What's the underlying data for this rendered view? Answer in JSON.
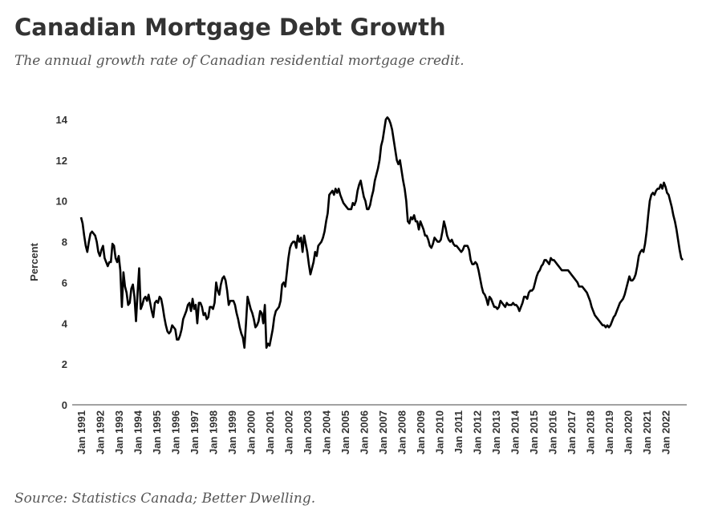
{
  "chart_data": {
    "type": "line",
    "title": "Canadian Mortgage Debt Growth",
    "subtitle": "The annual growth rate of Canadian residential mortgage credit.",
    "source": "Source: Statistics Canada; Better Dwelling.",
    "y_label": "Percent",
    "color": "#000000",
    "ylim": [
      0,
      14
    ],
    "yticks": [
      0,
      2,
      4,
      6,
      8,
      10,
      12,
      14
    ],
    "categories": [
      "Jan 1991",
      null,
      null,
      null,
      null,
      null,
      null,
      null,
      null,
      null,
      null,
      null,
      "Jan 1992",
      null,
      null,
      null,
      null,
      null,
      null,
      null,
      null,
      null,
      null,
      null,
      "Jan 1993",
      null,
      null,
      null,
      null,
      null,
      null,
      null,
      null,
      null,
      null,
      null,
      "Jan 1994",
      null,
      null,
      null,
      null,
      null,
      null,
      null,
      null,
      null,
      null,
      null,
      "Jan 1995",
      null,
      null,
      null,
      null,
      null,
      null,
      null,
      null,
      null,
      null,
      null,
      "Jan 1996",
      null,
      null,
      null,
      null,
      null,
      null,
      null,
      null,
      null,
      null,
      null,
      "Jan 1997",
      null,
      null,
      null,
      null,
      null,
      null,
      null,
      null,
      null,
      null,
      null,
      "Jan 1998",
      null,
      null,
      null,
      null,
      null,
      null,
      null,
      null,
      null,
      null,
      null,
      "Jan 1999",
      null,
      null,
      null,
      null,
      null,
      null,
      null,
      null,
      null,
      null,
      null,
      "Jan 2000",
      null,
      null,
      null,
      null,
      null,
      null,
      null,
      null,
      null,
      null,
      null,
      "Jan 2001",
      null,
      null,
      null,
      null,
      null,
      null,
      null,
      null,
      null,
      null,
      null,
      "Jan 2002",
      null,
      null,
      null,
      null,
      null,
      null,
      null,
      null,
      null,
      null,
      null,
      "Jan 2003",
      null,
      null,
      null,
      null,
      null,
      null,
      null,
      null,
      null,
      null,
      null,
      "Jan 2004",
      null,
      null,
      null,
      null,
      null,
      null,
      null,
      null,
      null,
      null,
      null,
      "Jan 2005",
      null,
      null,
      null,
      null,
      null,
      null,
      null,
      null,
      null,
      null,
      null,
      "Jan 2006",
      null,
      null,
      null,
      null,
      null,
      null,
      null,
      null,
      null,
      null,
      null,
      "Jan 2007",
      null,
      null,
      null,
      null,
      null,
      null,
      null,
      null,
      null,
      null,
      null,
      "Jan 2008",
      null,
      null,
      null,
      null,
      null,
      null,
      null,
      null,
      null,
      null,
      null,
      "Jan 2009",
      null,
      null,
      null,
      null,
      null,
      null,
      null,
      null,
      null,
      null,
      null,
      "Jan 2010",
      null,
      null,
      null,
      null,
      null,
      null,
      null,
      null,
      null,
      null,
      null,
      "Jan 2011",
      null,
      null,
      null,
      null,
      null,
      null,
      null,
      null,
      null,
      null,
      null,
      "Jan 2012",
      null,
      null,
      null,
      null,
      null,
      null,
      null,
      null,
      null,
      null,
      null,
      "Jan 2013",
      null,
      null,
      null,
      null,
      null,
      null,
      null,
      null,
      null,
      null,
      null,
      "Jan 2014",
      null,
      null,
      null,
      null,
      null,
      null,
      null,
      null,
      null,
      null,
      null,
      "Jan 2015",
      null,
      null,
      null,
      null,
      null,
      null,
      null,
      null,
      null,
      null,
      null,
      "Jan 2016",
      null,
      null,
      null,
      null,
      null,
      null,
      null,
      null,
      null,
      null,
      null,
      "Jan 2017",
      null,
      null,
      null,
      null,
      null,
      null,
      null,
      null,
      null,
      null,
      null,
      "Jan 2018",
      null,
      null,
      null,
      null,
      null,
      null,
      null,
      null,
      null,
      null,
      null,
      "Jan 2019",
      null,
      null,
      null,
      null,
      null,
      null,
      null,
      null,
      null,
      null,
      null,
      "Jan 2020",
      null,
      null,
      null,
      null,
      null,
      null,
      null,
      null,
      null,
      null,
      null,
      "Jan 2021",
      null,
      null,
      null,
      null,
      null,
      null,
      null,
      null,
      null,
      null,
      null,
      "Jan 2022",
      null,
      null,
      null,
      null,
      null,
      null,
      null,
      null,
      null,
      null,
      null
    ],
    "values": [
      9.2,
      8.9,
      8.3,
      7.8,
      7.5,
      8.0,
      8.4,
      8.5,
      8.4,
      8.3,
      8.0,
      7.5,
      7.3,
      7.6,
      7.8,
      7.2,
      7.0,
      6.8,
      7.0,
      7.0,
      7.9,
      7.8,
      7.2,
      7.0,
      7.3,
      6.6,
      4.8,
      6.5,
      5.8,
      5.5,
      4.9,
      5.0,
      5.7,
      5.9,
      5.3,
      4.1,
      5.5,
      6.7,
      4.7,
      4.9,
      5.2,
      5.3,
      5.1,
      5.4,
      5.0,
      4.6,
      4.3,
      5.0,
      5.1,
      5.0,
      5.3,
      5.2,
      4.8,
      4.3,
      3.9,
      3.6,
      3.5,
      3.6,
      3.9,
      3.8,
      3.7,
      3.2,
      3.2,
      3.4,
      3.7,
      4.2,
      4.4,
      4.6,
      4.9,
      5.0,
      4.6,
      5.2,
      4.7,
      4.9,
      4.0,
      5.0,
      5.0,
      4.8,
      4.4,
      4.5,
      4.2,
      4.3,
      4.8,
      4.8,
      4.7,
      5.0,
      6.0,
      5.6,
      5.4,
      5.9,
      6.2,
      6.3,
      6.1,
      5.6,
      4.9,
      5.1,
      5.1,
      5.1,
      4.9,
      4.5,
      4.2,
      3.8,
      3.5,
      3.3,
      2.8,
      4.0,
      5.3,
      5.0,
      4.7,
      4.5,
      4.2,
      3.8,
      3.9,
      4.1,
      4.6,
      4.5,
      4.0,
      4.9,
      2.8,
      3.0,
      2.9,
      3.3,
      3.7,
      4.3,
      4.6,
      4.7,
      4.8,
      5.1,
      5.9,
      6.0,
      5.8,
      6.5,
      7.2,
      7.7,
      7.9,
      8.0,
      8.0,
      7.7,
      8.3,
      8.0,
      8.2,
      7.5,
      8.3,
      7.9,
      7.5,
      6.9,
      6.4,
      6.7,
      7.0,
      7.5,
      7.3,
      7.8,
      7.9,
      8.0,
      8.2,
      8.5,
      9.0,
      9.4,
      10.3,
      10.4,
      10.5,
      10.3,
      10.6,
      10.4,
      10.6,
      10.3,
      10.1,
      9.9,
      9.8,
      9.7,
      9.6,
      9.6,
      9.6,
      9.9,
      9.8,
      10.0,
      10.5,
      10.8,
      11.0,
      10.6,
      10.2,
      10.0,
      9.6,
      9.6,
      9.8,
      10.2,
      10.5,
      11.0,
      11.3,
      11.6,
      12.0,
      12.7,
      13.0,
      13.5,
      14.0,
      14.1,
      14.0,
      13.8,
      13.5,
      13.0,
      12.5,
      12.0,
      11.8,
      12.0,
      11.5,
      11.0,
      10.6,
      10.0,
      9.0,
      8.9,
      9.2,
      9.1,
      9.3,
      9.0,
      9.0,
      8.6,
      9.0,
      8.8,
      8.6,
      8.3,
      8.3,
      8.1,
      7.8,
      7.7,
      7.9,
      8.2,
      8.1,
      8.0,
      8.0,
      8.1,
      8.5,
      9.0,
      8.7,
      8.3,
      8.1,
      8.0,
      8.1,
      7.9,
      7.8,
      7.8,
      7.7,
      7.6,
      7.5,
      7.6,
      7.8,
      7.8,
      7.8,
      7.6,
      7.1,
      6.9,
      6.9,
      7.0,
      6.9,
      6.6,
      6.2,
      5.8,
      5.5,
      5.4,
      5.2,
      4.9,
      5.3,
      5.2,
      5.0,
      4.8,
      4.8,
      4.7,
      4.8,
      5.1,
      5.0,
      4.9,
      4.8,
      5.0,
      4.9,
      4.9,
      4.9,
      5.0,
      4.9,
      4.9,
      4.8,
      4.6,
      4.8,
      5.0,
      5.3,
      5.3,
      5.2,
      5.5,
      5.6,
      5.6,
      5.7,
      6.0,
      6.3,
      6.5,
      6.6,
      6.8,
      6.9,
      7.1,
      7.1,
      7.0,
      6.9,
      7.2,
      7.1,
      7.1,
      7.0,
      6.9,
      6.8,
      6.7,
      6.6,
      6.6,
      6.6,
      6.6,
      6.6,
      6.5,
      6.4,
      6.3,
      6.2,
      6.1,
      6.0,
      5.8,
      5.8,
      5.8,
      5.7,
      5.6,
      5.5,
      5.3,
      5.1,
      4.8,
      4.6,
      4.4,
      4.3,
      4.2,
      4.1,
      4.0,
      3.9,
      3.9,
      3.8,
      3.9,
      3.8,
      3.9,
      4.1,
      4.3,
      4.4,
      4.6,
      4.8,
      5.0,
      5.1,
      5.2,
      5.4,
      5.7,
      6.0,
      6.3,
      6.1,
      6.1,
      6.2,
      6.4,
      6.8,
      7.3,
      7.5,
      7.6,
      7.5,
      7.9,
      8.5,
      9.3,
      10.0,
      10.3,
      10.4,
      10.3,
      10.5,
      10.6,
      10.6,
      10.8,
      10.6,
      10.9,
      10.7,
      10.4,
      10.3,
      10.0,
      9.7,
      9.3,
      9.0,
      8.6,
      8.1,
      7.6,
      7.2,
      7.1
    ]
  }
}
